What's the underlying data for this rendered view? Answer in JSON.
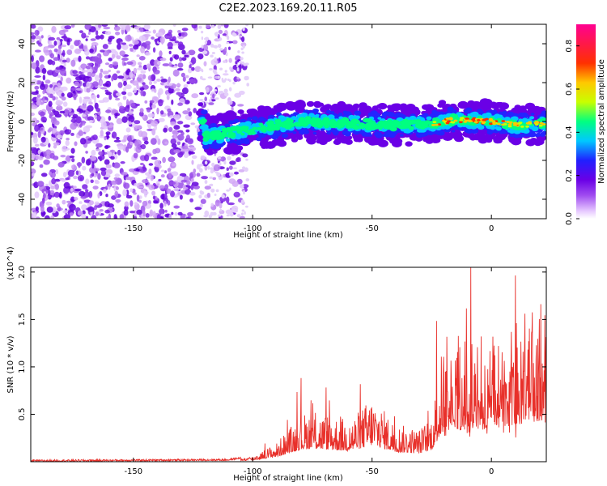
{
  "title": "C2E2.2023.169.20.11.R05",
  "chart_data": [
    {
      "type": "heatmap",
      "name": "spectrogram",
      "xlabel": "Height of straight line (km)",
      "ylabel": "Frequency (Hz)",
      "xlim": [
        -193,
        23
      ],
      "ylim": [
        -50,
        50
      ],
      "xticks": [
        -150,
        -100,
        -50,
        0
      ],
      "yticks": [
        -40,
        -20,
        0,
        20,
        40
      ],
      "colorbar": {
        "label": "Normalized spectral amplitude",
        "range": [
          0.0,
          0.9
        ],
        "ticks": [
          "0.0",
          "0.2",
          "0.4",
          "0.6",
          "0.8"
        ],
        "colors": [
          "#ffffff",
          "#e6c8ff",
          "#a04cf0",
          "#6a00e6",
          "#2020ff",
          "#00c8ff",
          "#00ff80",
          "#c8ff00",
          "#ffc800",
          "#ff3000",
          "#ff0090"
        ]
      },
      "trace": [
        {
          "x": -120,
          "f": -8
        },
        {
          "x": -100,
          "f": -4
        },
        {
          "x": -80,
          "f": 0
        },
        {
          "x": -60,
          "f": -1
        },
        {
          "x": -40,
          "f": -2
        },
        {
          "x": -25,
          "f": -1
        },
        {
          "x": -15,
          "f": 1
        },
        {
          "x": 0,
          "f": 0
        },
        {
          "x": 10,
          "f": -2
        },
        {
          "x": 23,
          "f": -1
        }
      ]
    },
    {
      "type": "line",
      "name": "snr",
      "xlabel": "Height of straight line (km)",
      "ylabel": "SNR (10 * v/v)",
      "y_multiplier": "(x10^4)",
      "xlim": [
        -193,
        23
      ],
      "ylim": [
        0,
        2.05
      ],
      "xticks": [
        -150,
        -100,
        -50,
        0
      ],
      "yticks": [
        "0.5",
        "1.0",
        "1.5",
        "2.0"
      ],
      "color": "#e8302a",
      "envelope": [
        {
          "x": -193,
          "y": 0.01
        },
        {
          "x": -110,
          "y": 0.02
        },
        {
          "x": -100,
          "y": 0.06
        },
        {
          "x": -90,
          "y": 0.2
        },
        {
          "x": -80,
          "y": 0.5
        },
        {
          "x": -75,
          "y": 0.55
        },
        {
          "x": -60,
          "y": 0.45
        },
        {
          "x": -55,
          "y": 0.55
        },
        {
          "x": -50,
          "y": 0.7
        },
        {
          "x": -40,
          "y": 0.4
        },
        {
          "x": -30,
          "y": 0.35
        },
        {
          "x": -25,
          "y": 0.5
        },
        {
          "x": -20,
          "y": 1.3
        },
        {
          "x": -15,
          "y": 1.4
        },
        {
          "x": -10,
          "y": 1.2
        },
        {
          "x": -5,
          "y": 1.35
        },
        {
          "x": 0,
          "y": 1.3
        },
        {
          "x": 5,
          "y": 1.45
        },
        {
          "x": 10,
          "y": 1.55
        },
        {
          "x": 15,
          "y": 1.65
        },
        {
          "x": 23,
          "y": 1.75
        }
      ]
    }
  ]
}
